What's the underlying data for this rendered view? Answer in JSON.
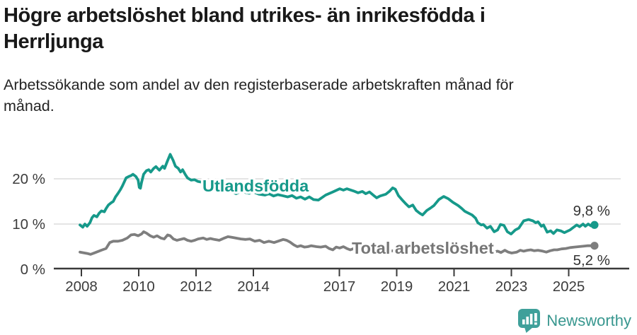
{
  "header": {
    "title": "Högre arbetslöshet bland utrikes- än inrikesfödda i Herrljunga",
    "subtitle": "Arbetssökande som andel av den registerbaserade arbetskraften månad för månad."
  },
  "footer": {
    "brand": "Newsworthy"
  },
  "colors": {
    "teal": "#16998a",
    "gray": "#7e7e7e",
    "axis": "#3a3a3a",
    "grid": "#dcdcdc",
    "tick_text": "#3c3c3c",
    "value_text": "#333333",
    "brand_teal": "#38978f",
    "total_label": "#767676"
  },
  "chart_data": {
    "type": "line",
    "title": "",
    "xlabel": "",
    "ylabel": "",
    "x_unit": "year (monthly observations)",
    "xlim": [
      2007.95,
      2026.1
    ],
    "ylim": [
      0,
      27
    ],
    "grid": "horizontal",
    "y_ticks": [
      {
        "value": 0,
        "label": "0 %"
      },
      {
        "value": 10,
        "label": "10 %"
      },
      {
        "value": 20,
        "label": "20 %"
      }
    ],
    "x_ticks": [
      {
        "value": 2008,
        "label": "2008"
      },
      {
        "value": 2010,
        "label": "2010"
      },
      {
        "value": 2012,
        "label": "2012"
      },
      {
        "value": 2014,
        "label": "2014"
      },
      {
        "value": 2017,
        "label": "2017"
      },
      {
        "value": 2019,
        "label": "2019"
      },
      {
        "value": 2021,
        "label": "2021"
      },
      {
        "value": 2023,
        "label": "2023"
      },
      {
        "value": 2025,
        "label": "2025"
      }
    ],
    "series": [
      {
        "name": "Utlandsfödda",
        "color": "#16998a",
        "end_label": "9,8 %",
        "end_value": 9.8,
        "points": [
          [
            2007.95,
            9.8
          ],
          [
            2008.05,
            9.3
          ],
          [
            2008.12,
            10.0
          ],
          [
            2008.2,
            9.5
          ],
          [
            2008.3,
            10.3
          ],
          [
            2008.37,
            11.4
          ],
          [
            2008.44,
            11.9
          ],
          [
            2008.54,
            11.6
          ],
          [
            2008.62,
            12.4
          ],
          [
            2008.7,
            12.9
          ],
          [
            2008.8,
            12.7
          ],
          [
            2008.86,
            13.4
          ],
          [
            2008.94,
            14.2
          ],
          [
            2009.04,
            14.7
          ],
          [
            2009.11,
            15.0
          ],
          [
            2009.19,
            16.0
          ],
          [
            2009.28,
            16.8
          ],
          [
            2009.36,
            17.6
          ],
          [
            2009.43,
            18.4
          ],
          [
            2009.56,
            20.2
          ],
          [
            2009.65,
            20.5
          ],
          [
            2009.73,
            20.7
          ],
          [
            2009.8,
            21.0
          ],
          [
            2009.9,
            20.5
          ],
          [
            2009.98,
            19.7
          ],
          [
            2010.02,
            18.1
          ],
          [
            2010.06,
            17.9
          ],
          [
            2010.1,
            19.2
          ],
          [
            2010.17,
            21.0
          ],
          [
            2010.27,
            21.8
          ],
          [
            2010.35,
            22.0
          ],
          [
            2010.42,
            21.5
          ],
          [
            2010.52,
            22.3
          ],
          [
            2010.6,
            22.7
          ],
          [
            2010.66,
            22.3
          ],
          [
            2010.72,
            21.9
          ],
          [
            2010.84,
            22.8
          ],
          [
            2010.9,
            22.3
          ],
          [
            2011.0,
            23.9
          ],
          [
            2011.1,
            25.4
          ],
          [
            2011.2,
            24.1
          ],
          [
            2011.28,
            22.8
          ],
          [
            2011.38,
            22.3
          ],
          [
            2011.46,
            21.5
          ],
          [
            2011.53,
            22.0
          ],
          [
            2011.62,
            21.0
          ],
          [
            2011.7,
            20.2
          ],
          [
            2011.83,
            19.7
          ],
          [
            2011.95,
            19.8
          ],
          [
            2012.07,
            19.4
          ],
          [
            2012.25,
            19.2
          ],
          [
            2012.32,
            18.4
          ],
          [
            2012.4,
            17.6
          ],
          [
            2012.47,
            17.9
          ],
          [
            2012.52,
            17.3
          ],
          [
            2012.6,
            17.7
          ],
          [
            2012.75,
            18.0
          ],
          [
            2012.9,
            17.6
          ],
          [
            2013.05,
            17.9
          ],
          [
            2013.2,
            17.3
          ],
          [
            2013.4,
            16.7
          ],
          [
            2013.55,
            17.2
          ],
          [
            2013.7,
            17.0
          ],
          [
            2013.85,
            16.8
          ],
          [
            2014.0,
            17.1
          ],
          [
            2014.2,
            16.6
          ],
          [
            2014.4,
            16.4
          ],
          [
            2014.55,
            16.7
          ],
          [
            2014.7,
            16.2
          ],
          [
            2014.85,
            16.5
          ],
          [
            2015.0,
            16.3
          ],
          [
            2015.2,
            16.0
          ],
          [
            2015.35,
            16.3
          ],
          [
            2015.5,
            15.7
          ],
          [
            2015.65,
            16.0
          ],
          [
            2015.8,
            15.5
          ],
          [
            2015.95,
            16.0
          ],
          [
            2016.1,
            15.4
          ],
          [
            2016.27,
            15.3
          ],
          [
            2016.52,
            16.4
          ],
          [
            2016.77,
            17.1
          ],
          [
            2017.01,
            17.8
          ],
          [
            2017.14,
            17.5
          ],
          [
            2017.26,
            17.8
          ],
          [
            2017.5,
            17.3
          ],
          [
            2017.65,
            16.9
          ],
          [
            2017.8,
            17.2
          ],
          [
            2017.92,
            16.7
          ],
          [
            2018.05,
            17.1
          ],
          [
            2018.2,
            16.3
          ],
          [
            2018.3,
            15.8
          ],
          [
            2018.42,
            16.2
          ],
          [
            2018.62,
            16.6
          ],
          [
            2018.74,
            17.2
          ],
          [
            2018.86,
            18.0
          ],
          [
            2018.95,
            17.7
          ],
          [
            2019.06,
            16.3
          ],
          [
            2019.18,
            15.4
          ],
          [
            2019.3,
            14.6
          ],
          [
            2019.43,
            13.8
          ],
          [
            2019.56,
            14.2
          ],
          [
            2019.68,
            13.0
          ],
          [
            2019.8,
            12.4
          ],
          [
            2019.9,
            12.0
          ],
          [
            2020.05,
            13.0
          ],
          [
            2020.17,
            13.5
          ],
          [
            2020.3,
            14.1
          ],
          [
            2020.47,
            15.4
          ],
          [
            2020.64,
            16.1
          ],
          [
            2020.8,
            15.6
          ],
          [
            2020.96,
            14.8
          ],
          [
            2021.14,
            14.1
          ],
          [
            2021.26,
            13.5
          ],
          [
            2021.38,
            12.8
          ],
          [
            2021.5,
            12.4
          ],
          [
            2021.63,
            12.0
          ],
          [
            2021.75,
            11.3
          ],
          [
            2021.83,
            10.3
          ],
          [
            2021.95,
            9.8
          ],
          [
            2022.02,
            9.9
          ],
          [
            2022.15,
            9.1
          ],
          [
            2022.27,
            9.5
          ],
          [
            2022.4,
            8.3
          ],
          [
            2022.52,
            8.7
          ],
          [
            2022.62,
            9.9
          ],
          [
            2022.74,
            9.7
          ],
          [
            2022.86,
            8.3
          ],
          [
            2022.99,
            7.8
          ],
          [
            2023.14,
            8.7
          ],
          [
            2023.26,
            9.1
          ],
          [
            2023.43,
            10.7
          ],
          [
            2023.6,
            11.0
          ],
          [
            2023.75,
            10.7
          ],
          [
            2023.85,
            10.3
          ],
          [
            2023.93,
            10.5
          ],
          [
            2024.05,
            9.5
          ],
          [
            2024.12,
            9.8
          ],
          [
            2024.25,
            8.2
          ],
          [
            2024.37,
            8.5
          ],
          [
            2024.47,
            7.9
          ],
          [
            2024.59,
            8.7
          ],
          [
            2024.72,
            8.5
          ],
          [
            2024.85,
            8.1
          ],
          [
            2024.95,
            8.4
          ],
          [
            2025.05,
            8.7
          ],
          [
            2025.15,
            9.2
          ],
          [
            2025.28,
            9.8
          ],
          [
            2025.38,
            9.4
          ],
          [
            2025.5,
            10.0
          ],
          [
            2025.58,
            9.5
          ],
          [
            2025.68,
            10.0
          ],
          [
            2025.78,
            9.6
          ],
          [
            2025.9,
            9.8
          ]
        ]
      },
      {
        "name": "Total arbetslöshet",
        "color": "#7e7e7e",
        "end_label": "5,2 %",
        "end_value": 5.2,
        "points": [
          [
            2007.95,
            3.8
          ],
          [
            2008.2,
            3.5
          ],
          [
            2008.32,
            3.3
          ],
          [
            2008.49,
            3.7
          ],
          [
            2008.69,
            4.2
          ],
          [
            2008.86,
            4.6
          ],
          [
            2008.99,
            5.9
          ],
          [
            2009.11,
            6.2
          ],
          [
            2009.28,
            6.2
          ],
          [
            2009.43,
            6.4
          ],
          [
            2009.6,
            6.9
          ],
          [
            2009.73,
            7.6
          ],
          [
            2009.85,
            7.7
          ],
          [
            2009.98,
            7.4
          ],
          [
            2010.1,
            7.8
          ],
          [
            2010.17,
            8.3
          ],
          [
            2010.27,
            8.0
          ],
          [
            2010.4,
            7.4
          ],
          [
            2010.52,
            7.1
          ],
          [
            2010.64,
            7.4
          ],
          [
            2010.77,
            6.9
          ],
          [
            2010.89,
            6.7
          ],
          [
            2011.01,
            7.6
          ],
          [
            2011.1,
            7.4
          ],
          [
            2011.21,
            6.7
          ],
          [
            2011.33,
            6.4
          ],
          [
            2011.45,
            6.6
          ],
          [
            2011.58,
            6.8
          ],
          [
            2011.7,
            6.4
          ],
          [
            2011.83,
            6.2
          ],
          [
            2011.95,
            6.4
          ],
          [
            2012.07,
            6.7
          ],
          [
            2012.25,
            6.9
          ],
          [
            2012.37,
            6.6
          ],
          [
            2012.5,
            6.8
          ],
          [
            2012.64,
            6.6
          ],
          [
            2012.81,
            6.4
          ],
          [
            2012.99,
            6.9
          ],
          [
            2013.11,
            7.2
          ],
          [
            2013.23,
            7.1
          ],
          [
            2013.38,
            6.9
          ],
          [
            2013.56,
            6.7
          ],
          [
            2013.73,
            6.6
          ],
          [
            2013.88,
            6.7
          ],
          [
            2014.05,
            6.2
          ],
          [
            2014.22,
            6.4
          ],
          [
            2014.37,
            5.9
          ],
          [
            2014.54,
            6.2
          ],
          [
            2014.72,
            5.9
          ],
          [
            2014.86,
            6.2
          ],
          [
            2015.04,
            6.6
          ],
          [
            2015.16,
            6.4
          ],
          [
            2015.28,
            6.0
          ],
          [
            2015.41,
            5.4
          ],
          [
            2015.53,
            5.0
          ],
          [
            2015.65,
            5.2
          ],
          [
            2015.78,
            4.9
          ],
          [
            2015.9,
            5.0
          ],
          [
            2016.02,
            5.2
          ],
          [
            2016.2,
            5.0
          ],
          [
            2016.35,
            4.9
          ],
          [
            2016.52,
            5.1
          ],
          [
            2016.64,
            4.6
          ],
          [
            2016.77,
            4.3
          ],
          [
            2016.89,
            4.9
          ],
          [
            2017.01,
            4.7
          ],
          [
            2017.14,
            5.0
          ],
          [
            2017.26,
            4.6
          ],
          [
            2017.38,
            4.3
          ],
          [
            2017.51,
            4.6
          ],
          [
            2017.7,
            4.4
          ],
          [
            2017.9,
            4.2
          ],
          [
            2018.1,
            4.3
          ],
          [
            2018.3,
            4.1
          ],
          [
            2018.5,
            4.2
          ],
          [
            2018.7,
            4.0
          ],
          [
            2018.9,
            4.1
          ],
          [
            2019.1,
            4.3
          ],
          [
            2019.3,
            4.2
          ],
          [
            2019.5,
            4.1
          ],
          [
            2019.7,
            4.2
          ],
          [
            2019.9,
            4.4
          ],
          [
            2020.1,
            4.6
          ],
          [
            2020.3,
            4.8
          ],
          [
            2020.5,
            4.9
          ],
          [
            2020.7,
            4.7
          ],
          [
            2020.9,
            4.5
          ],
          [
            2021.1,
            4.3
          ],
          [
            2021.3,
            4.2
          ],
          [
            2021.5,
            4.0
          ],
          [
            2021.7,
            3.9
          ],
          [
            2021.9,
            3.8
          ],
          [
            2022.1,
            3.8
          ],
          [
            2022.25,
            3.9
          ],
          [
            2022.37,
            3.8
          ],
          [
            2022.52,
            4.0
          ],
          [
            2022.64,
            3.7
          ],
          [
            2022.77,
            4.2
          ],
          [
            2022.89,
            3.8
          ],
          [
            2023.01,
            3.6
          ],
          [
            2023.19,
            3.8
          ],
          [
            2023.31,
            4.2
          ],
          [
            2023.43,
            4.0
          ],
          [
            2023.56,
            4.2
          ],
          [
            2023.68,
            4.3
          ],
          [
            2023.8,
            4.1
          ],
          [
            2023.93,
            4.2
          ],
          [
            2024.1,
            4.0
          ],
          [
            2024.22,
            3.8
          ],
          [
            2024.35,
            4.1
          ],
          [
            2024.49,
            4.3
          ],
          [
            2024.6,
            4.3
          ],
          [
            2024.75,
            4.5
          ],
          [
            2024.9,
            4.6
          ],
          [
            2025.05,
            4.8
          ],
          [
            2025.2,
            4.9
          ],
          [
            2025.35,
            5.0
          ],
          [
            2025.5,
            5.1
          ],
          [
            2025.65,
            5.2
          ],
          [
            2025.78,
            5.2
          ],
          [
            2025.9,
            5.2
          ]
        ]
      }
    ],
    "legend_position": "inline-on-lines"
  }
}
